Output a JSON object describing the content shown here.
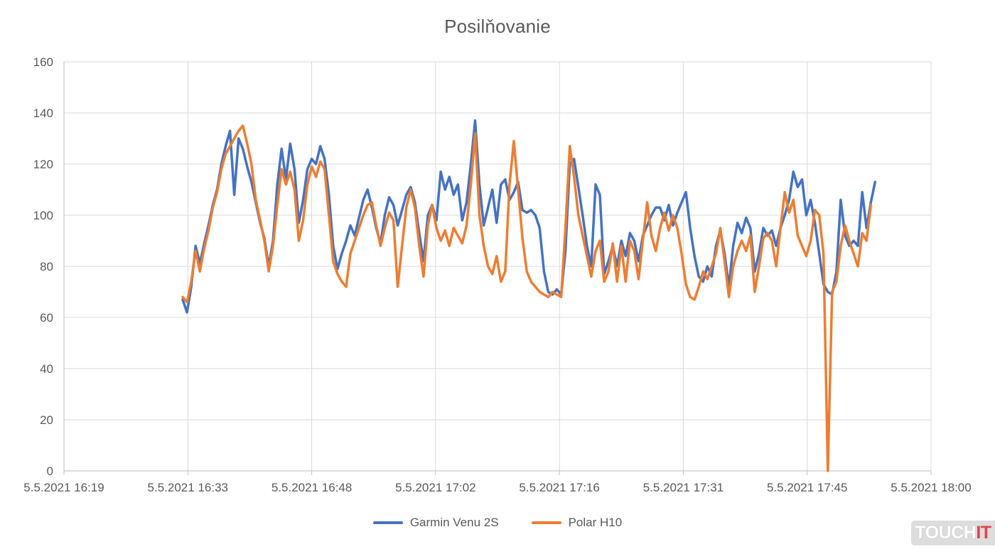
{
  "watermark": {
    "part1": "TOUCH",
    "part2": "IT"
  },
  "chart_data": {
    "type": "line",
    "title": "Posilňovanie",
    "xlabel": "",
    "ylabel": "",
    "grid": true,
    "legend_position": "bottom",
    "style": {
      "background": "#FFFFFF",
      "gridline_color": "#D9D9D9",
      "axis_color": "#BFBFBF",
      "label_color": "#595959",
      "line_width": 3.5
    },
    "x_axis": {
      "description": "time of day on 5.5.2021, stored as minutes after 16:00",
      "min": 19.2,
      "max": 120,
      "ticks": [
        {
          "label": "5.5.2021 16:19",
          "t": 19.2
        },
        {
          "label": "5.5.2021 16:33",
          "t": 33.6
        },
        {
          "label": "5.5.2021 16:48",
          "t": 48.0
        },
        {
          "label": "5.5.2021 17:02",
          "t": 62.4
        },
        {
          "label": "5.5.2021 17:16",
          "t": 76.8
        },
        {
          "label": "5.5.2021 17:31",
          "t": 91.2
        },
        {
          "label": "5.5.2021 17:45",
          "t": 105.6
        },
        {
          "label": "5.5.2021 18:00",
          "t": 120.0
        }
      ]
    },
    "y_axis": {
      "min": 0,
      "max": 160,
      "tick_step": 20,
      "ticks": [
        0,
        20,
        40,
        60,
        80,
        100,
        120,
        140,
        160
      ]
    },
    "series": [
      {
        "name": "Garmin Venu 2S",
        "color": "#4472C4",
        "unit": "bpm",
        "t0": 33.0,
        "dt": 0.5,
        "values": [
          67,
          62,
          72,
          88,
          81,
          89,
          96,
          104,
          110,
          120,
          127,
          133,
          108,
          130,
          126,
          119,
          113,
          105,
          97,
          91,
          80,
          90,
          112,
          126,
          114,
          128,
          118,
          97,
          106,
          118,
          122,
          120,
          127,
          122,
          108,
          88,
          79,
          85,
          90,
          96,
          92,
          99,
          106,
          110,
          103,
          95,
          89,
          100,
          107,
          104,
          96,
          102,
          108,
          111,
          105,
          93,
          82,
          100,
          104,
          98,
          117,
          110,
          115,
          108,
          112,
          98,
          105,
          120,
          137,
          112,
          96,
          103,
          110,
          97,
          112,
          114,
          106,
          109,
          113,
          102,
          101,
          102,
          100,
          95,
          78,
          70,
          69,
          71,
          69,
          86,
          120,
          122,
          111,
          100,
          88,
          80,
          112,
          108,
          77,
          82,
          88,
          80,
          90,
          84,
          93,
          90,
          82,
          92,
          96,
          100,
          103,
          103,
          98,
          104,
          96,
          101,
          105,
          109,
          95,
          84,
          76,
          74,
          80,
          76,
          88,
          94,
          85,
          72,
          88,
          97,
          93,
          99,
          95,
          78,
          85,
          95,
          92,
          94,
          88,
          95,
          100,
          106,
          117,
          111,
          114,
          100,
          106,
          97,
          85,
          73,
          70,
          69,
          78,
          106,
          92,
          88,
          90,
          88,
          109,
          95,
          105,
          113
        ]
      },
      {
        "name": "Polar H10",
        "color": "#ED7D31",
        "unit": "bpm",
        "t0": 33.0,
        "dt": 0.5,
        "values": [
          68,
          66,
          74,
          86,
          78,
          87,
          94,
          103,
          109,
          118,
          124,
          127,
          130,
          133,
          135,
          128,
          120,
          106,
          98,
          90,
          78,
          88,
          104,
          118,
          112,
          117,
          110,
          90,
          98,
          112,
          119,
          115,
          121,
          118,
          100,
          82,
          77,
          74,
          72,
          85,
          90,
          95,
          100,
          104,
          105,
          96,
          88,
          95,
          101,
          98,
          72,
          88,
          103,
          110,
          103,
          88,
          76,
          96,
          104,
          95,
          90,
          94,
          88,
          95,
          92,
          89,
          96,
          112,
          132,
          100,
          88,
          80,
          77,
          84,
          74,
          78,
          112,
          129,
          110,
          91,
          78,
          74,
          72,
          70,
          69,
          68,
          70,
          69,
          68,
          95,
          127,
          115,
          100,
          92,
          84,
          76,
          86,
          90,
          74,
          78,
          89,
          74,
          88,
          74,
          90,
          86,
          75,
          90,
          105,
          92,
          86,
          95,
          101,
          94,
          100,
          95,
          85,
          73,
          68,
          67,
          72,
          78,
          75,
          80,
          85,
          95,
          82,
          68,
          80,
          86,
          90,
          86,
          92,
          70,
          80,
          91,
          93,
          90,
          80,
          95,
          109,
          101,
          106,
          92,
          88,
          84,
          90,
          102,
          100,
          85,
          0,
          70,
          74,
          88,
          96,
          90,
          85,
          80,
          93,
          90,
          104
        ]
      }
    ]
  }
}
